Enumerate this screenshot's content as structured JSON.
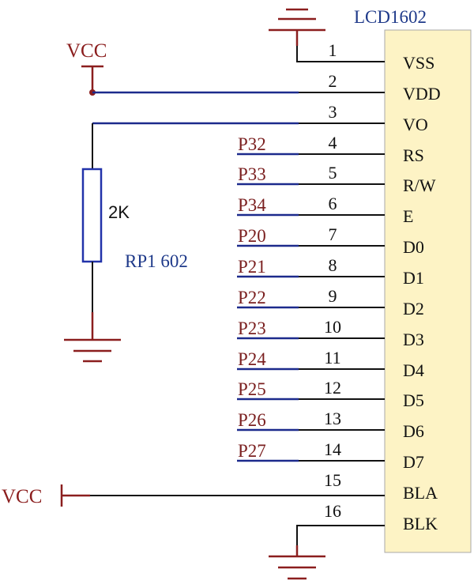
{
  "chip": {
    "title": "LCD1602",
    "pins": [
      {
        "num": "1",
        "name": "VSS",
        "net": ""
      },
      {
        "num": "2",
        "name": "VDD",
        "net": ""
      },
      {
        "num": "3",
        "name": "VO",
        "net": ""
      },
      {
        "num": "4",
        "name": "RS",
        "net": "P32"
      },
      {
        "num": "5",
        "name": "R/W",
        "net": "P33"
      },
      {
        "num": "6",
        "name": "E",
        "net": "P34"
      },
      {
        "num": "7",
        "name": "D0",
        "net": "P20"
      },
      {
        "num": "8",
        "name": "D1",
        "net": "P21"
      },
      {
        "num": "9",
        "name": "D2",
        "net": "P22"
      },
      {
        "num": "10",
        "name": "D3",
        "net": "P23"
      },
      {
        "num": "11",
        "name": "D4",
        "net": "P24"
      },
      {
        "num": "12",
        "name": "D5",
        "net": "P25"
      },
      {
        "num": "13",
        "name": "D6",
        "net": "P26"
      },
      {
        "num": "14",
        "name": "D7",
        "net": "P27"
      },
      {
        "num": "15",
        "name": "BLA",
        "net": ""
      },
      {
        "num": "16",
        "name": "BLK",
        "net": ""
      }
    ]
  },
  "power": {
    "vcc_top": "VCC",
    "vcc_bottom": "VCC"
  },
  "resistor": {
    "value": "2K",
    "ref": "RP1 602"
  },
  "colors": {
    "chip_fill": "#fdf3c5",
    "chip_border": "#a9a9a9",
    "wire_black": "#111111",
    "wire_blue": "#1c2a8c",
    "power_red": "#8b1e1e",
    "net_red": "#7a1f1f",
    "label_blue": "#1f3a8a",
    "resistor_blue": "#2233aa"
  }
}
